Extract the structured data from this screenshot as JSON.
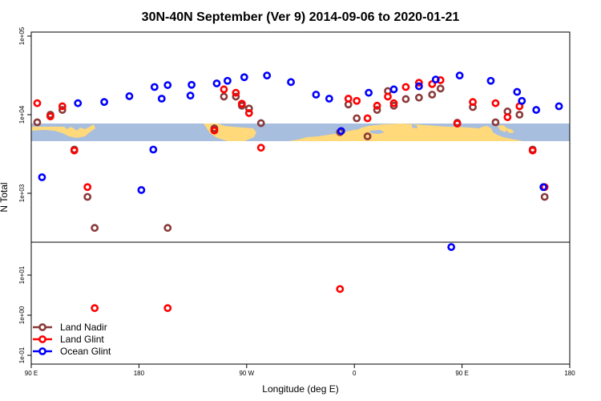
{
  "chart_data": {
    "type": "scatter",
    "title": "30N-40N September (Ver 9)   2014-09-06 to 2020-01-21",
    "xlabel": "Longitude (deg E)",
    "ylabel": "N Total",
    "y_scale": "log",
    "xlim": [
      90,
      540
    ],
    "top_panel_ylim": [
      200,
      100000
    ],
    "bottom_panel_ylim": [
      0.1,
      0.5
    ],
    "x_ticks": [
      {
        "value": 90,
        "label": "90 E"
      },
      {
        "value": 180,
        "label": "180"
      },
      {
        "value": 270,
        "label": "90 W"
      },
      {
        "value": 360,
        "label": "0"
      },
      {
        "value": 450,
        "label": "90 E"
      },
      {
        "value": 540,
        "label": "180"
      }
    ],
    "top_y_ticks": [
      {
        "value": 1000,
        "label": "1e+03"
      },
      {
        "value": 10000,
        "label": "1e+04"
      },
      {
        "value": 100000,
        "label": "1e+05"
      }
    ],
    "bottom_y_ticks": [
      {
        "value": 0.1,
        "label": "1e-01"
      },
      {
        "value": 1,
        "label": "1e+00"
      },
      {
        "value": 10,
        "label": "1e+01"
      },
      {
        "value": 100,
        "label": "1e+02"
      }
    ],
    "legend_position": "bottom-left",
    "series": [
      {
        "name": "Land Nadir",
        "color": "#8b3a3a",
        "points": [
          [
            95,
            8000
          ],
          [
            106,
            10000
          ],
          [
            116,
            11500
          ],
          [
            126,
            3600
          ],
          [
            137,
            900
          ],
          [
            143,
            150
          ],
          [
            243,
            6700
          ],
          [
            251,
            17000
          ],
          [
            261,
            17000
          ],
          [
            266,
            13000
          ],
          [
            272,
            12000
          ],
          [
            282,
            7800
          ],
          [
            348,
            6000
          ],
          [
            355,
            13500
          ],
          [
            362,
            9000
          ],
          [
            371,
            5300
          ],
          [
            379,
            11500
          ],
          [
            388,
            20000
          ],
          [
            393,
            13000
          ],
          [
            403,
            15800
          ],
          [
            414,
            16500
          ],
          [
            425,
            18000
          ],
          [
            432,
            21500
          ],
          [
            446,
            7900
          ],
          [
            459,
            12500
          ],
          [
            478,
            8000
          ],
          [
            488,
            11000
          ],
          [
            498,
            10000
          ],
          [
            509,
            3600
          ],
          [
            519,
            900
          ],
          [
            564,
            150
          ]
        ]
      },
      {
        "name": "Land Glint",
        "color": "#ff0000",
        "points": [
          [
            95,
            14000
          ],
          [
            106,
            9500
          ],
          [
            116,
            12800
          ],
          [
            126,
            3500
          ],
          [
            137,
            1200
          ],
          [
            143,
            1.5
          ],
          [
            243,
            6300
          ],
          [
            251,
            21000
          ],
          [
            261,
            19000
          ],
          [
            266,
            13800
          ],
          [
            272,
            10500
          ],
          [
            282,
            3800
          ],
          [
            348,
            4.5
          ],
          [
            355,
            16000
          ],
          [
            362,
            15000
          ],
          [
            371,
            9000
          ],
          [
            379,
            13000
          ],
          [
            388,
            17000
          ],
          [
            393,
            14000
          ],
          [
            403,
            22500
          ],
          [
            414,
            25500
          ],
          [
            425,
            24500
          ],
          [
            432,
            27500
          ],
          [
            446,
            7700
          ],
          [
            459,
            14500
          ],
          [
            478,
            14000
          ],
          [
            488,
            9300
          ],
          [
            498,
            12800
          ],
          [
            509,
            3500
          ],
          [
            519,
            1200
          ],
          [
            564,
            1.5
          ]
        ]
      },
      {
        "name": "Ocean Glint",
        "color": "#0000ff",
        "points": [
          [
            81,
            50
          ],
          [
            99,
            1600
          ],
          [
            129,
            14000
          ],
          [
            151,
            14500
          ],
          [
            172,
            17200
          ],
          [
            193,
            22500
          ],
          [
            204,
            23800
          ],
          [
            224,
            24000
          ],
          [
            245,
            25000
          ],
          [
            254,
            27000
          ],
          [
            268,
            30000
          ],
          [
            287,
            31500
          ],
          [
            307,
            26000
          ],
          [
            328,
            18000
          ],
          [
            339,
            16000
          ],
          [
            349,
            6200
          ],
          [
            372,
            19000
          ],
          [
            393,
            21000
          ],
          [
            414,
            23000
          ],
          [
            428,
            28000
          ],
          [
            448,
            31500
          ],
          [
            474,
            27000
          ],
          [
            496,
            19500
          ],
          [
            500,
            15000
          ],
          [
            512,
            11500
          ],
          [
            518,
            1200
          ],
          [
            531,
            12800
          ],
          [
            542,
            1100
          ],
          [
            552,
            3600
          ],
          [
            559,
            16000
          ],
          [
            583,
            17500
          ]
        ]
      }
    ]
  },
  "legend": [
    {
      "label": "Land Nadir",
      "color": "#8b3a3a"
    },
    {
      "label": "Land Glint",
      "color": "#ff0000"
    },
    {
      "label": "Ocean Glint",
      "color": "#0000ff"
    }
  ],
  "colors": {
    "land": "#ffd97a",
    "ocean": "#a7bede"
  }
}
